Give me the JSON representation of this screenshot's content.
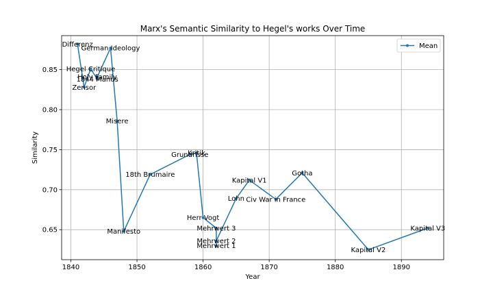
{
  "chart_data": {
    "type": "line",
    "title": "Marx's Semantic Similarity to Hegel's works Over Time",
    "xlabel": "Year",
    "ylabel": "Similarity",
    "xlim": [
      1838.6,
      1896.4
    ],
    "ylim": [
      0.6125,
      0.8925
    ],
    "xticks": [
      1840,
      1850,
      1860,
      1870,
      1880,
      1890
    ],
    "yticks": [
      0.65,
      0.7,
      0.75,
      0.8,
      0.85
    ],
    "ytick_labels": [
      "0.65",
      "0.70",
      "0.75",
      "0.80",
      "0.85"
    ],
    "grid": true,
    "legend_position": "top-right",
    "color": "#1f77b4",
    "series": [
      {
        "name": "Mean",
        "points": [
          {
            "x": 1841,
            "y": 0.882,
            "label": "Differenz"
          },
          {
            "x": 1842,
            "y": 0.828,
            "label": "Zensor"
          },
          {
            "x": 1843,
            "y": 0.851,
            "label": "Hegel Critique"
          },
          {
            "x": 1844,
            "y": 0.838,
            "label": "1844 Manus"
          },
          {
            "x": 1844,
            "y": 0.841,
            "label": "Holy Family"
          },
          {
            "x": 1846,
            "y": 0.877,
            "label": "German Ideology"
          },
          {
            "x": 1847,
            "y": 0.786,
            "label": "Misere"
          },
          {
            "x": 1848,
            "y": 0.648,
            "label": "Manifesto"
          },
          {
            "x": 1852,
            "y": 0.719,
            "label": "18th Brumaire"
          },
          {
            "x": 1858,
            "y": 0.744,
            "label": "Grundrisse"
          },
          {
            "x": 1859,
            "y": 0.746,
            "label": "Kritik"
          },
          {
            "x": 1860,
            "y": 0.665,
            "label": "Herr Vogt"
          },
          {
            "x": 1862,
            "y": 0.652,
            "label": "Mehrwert 3"
          },
          {
            "x": 1862,
            "y": 0.63,
            "label": "Mehrwert 1"
          },
          {
            "x": 1862,
            "y": 0.636,
            "label": "Mehrwert 2"
          },
          {
            "x": 1865,
            "y": 0.689,
            "label": "Lohn"
          },
          {
            "x": 1867,
            "y": 0.712,
            "label": "Kapital V1"
          },
          {
            "x": 1871,
            "y": 0.688,
            "label": "Civ War in France"
          },
          {
            "x": 1875,
            "y": 0.721,
            "label": "Gotha"
          },
          {
            "x": 1885,
            "y": 0.625,
            "label": "Kapital V2"
          },
          {
            "x": 1894,
            "y": 0.652,
            "label": "Kapital V3"
          }
        ]
      }
    ]
  }
}
